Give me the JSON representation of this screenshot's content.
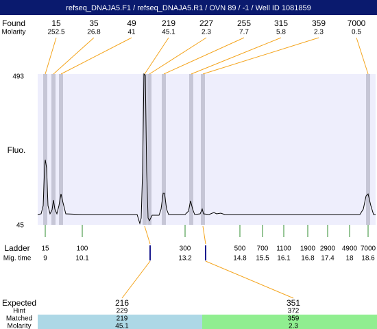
{
  "title": "refseq_DNAJA5.F1 / refseq_DNAJA5.R1 / OVN 89 / -1 / Well ID 1081859",
  "found": {
    "label": "Found",
    "sizes": [
      15,
      35,
      49,
      219,
      227,
      255,
      315,
      359,
      7000
    ],
    "molarity_label": "Molarity",
    "molarity": [
      252.5,
      26.8,
      41,
      45.1,
      2.3,
      7.7,
      5.8,
      2.3,
      0.5
    ]
  },
  "y_axis": {
    "label": "Fluo.",
    "max": 493,
    "min": 45
  },
  "ladder": {
    "label": "Ladder",
    "sizes": [
      15,
      100,
      300,
      500,
      700,
      1100,
      1900,
      2900,
      4900,
      7000
    ],
    "mig_label": "Mig. time",
    "mig_times": [
      9,
      10.1,
      13.2,
      14.8,
      15.5,
      16.1,
      16.8,
      17.4,
      18,
      18.6
    ]
  },
  "expected": {
    "label": "Expected",
    "values": [
      216,
      351
    ],
    "hint_label": "Hint",
    "hints": [
      229,
      372
    ],
    "matched_label": "Matched",
    "matched": [
      219,
      359
    ],
    "molarity_label": "Molarity",
    "molarity": [
      45.1,
      2.3
    ]
  }
}
